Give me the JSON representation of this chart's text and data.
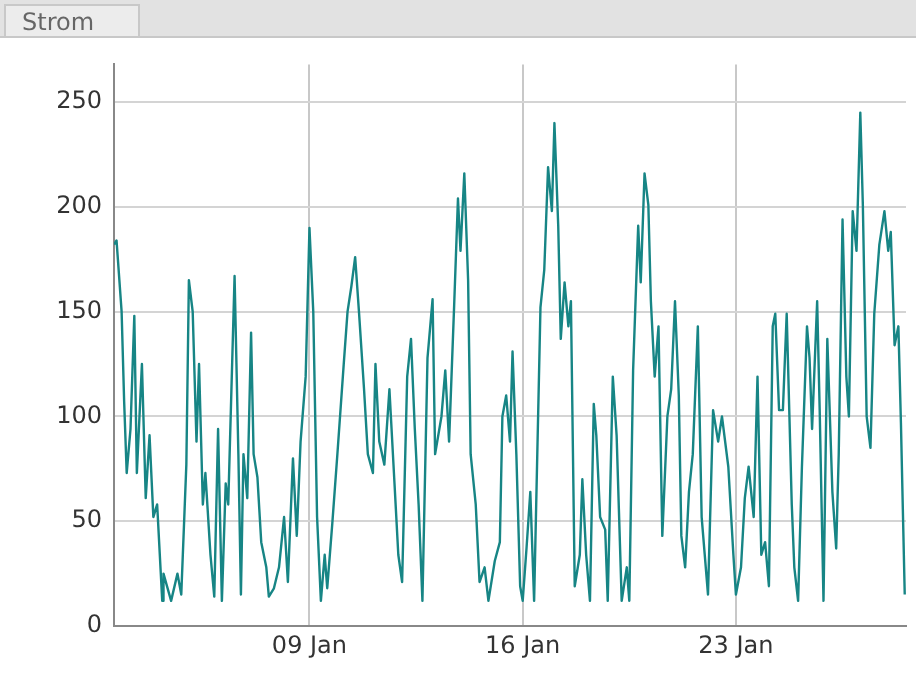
{
  "chart_data": {
    "type": "line",
    "title": "Strom",
    "x": [
      "--01-02T14:00",
      "--01-02T16:00",
      "--01-02T20:00",
      "--01-02T22:00",
      "--01-03T00:00",
      "--01-03T03:00",
      "--01-03T06:00",
      "--01-03T08:00",
      "--01-03T12:00",
      "--01-03T15:00",
      "--01-03T18:00",
      "--01-03T21:00",
      "--01-04T00:00",
      "--01-04T04:00",
      "--01-04T05:00",
      "--01-04T11:00",
      "--01-04T16:00",
      "--01-04T19:00",
      "--01-04T23:00",
      "--01-05T01:00",
      "--01-05T04:00",
      "--01-05T07:00",
      "--01-05T09:00",
      "--01-05T12:00",
      "--01-05T14:00",
      "--01-05T18:00",
      "--01-05T21:00",
      "--01-06T00:00",
      "--01-06T03:00",
      "--01-06T06:00",
      "--01-06T08:00",
      "--01-06T13:00",
      "--01-06T16:00",
      "--01-06T18:00",
      "--01-06T20:00",
      "--01-06T23:00",
      "--01-07T02:00",
      "--01-07T04:00",
      "--01-07T07:00",
      "--01-07T10:00",
      "--01-07T14:00",
      "--01-07T16:00",
      "--01-07T20:00",
      "--01-08T00:00",
      "--01-08T04:00",
      "--01-08T07:00",
      "--01-08T11:00",
      "--01-08T14:00",
      "--01-08T17:00",
      "--01-08T21:00",
      "--01-09T00:00",
      "--01-09T03:00",
      "--01-09T06:00",
      "--01-09T09:00",
      "--01-09T12:00",
      "--01-09T14:00",
      "--01-09T18:00",
      "--01-09T22:00",
      "--01-10T03:00",
      "--01-10T06:00",
      "--01-10T09:00",
      "--01-10T12:00",
      "--01-10T15:00",
      "--01-10T19:00",
      "--01-10T22:00",
      "--01-11T02:00",
      "--01-11T04:00",
      "--01-11T07:00",
      "--01-11T11:00",
      "--01-11T15:00",
      "--01-11T19:00",
      "--01-11T22:00",
      "--01-12T01:00",
      "--01-12T05:00",
      "--01-12T08:00",
      "--01-12T11:00",
      "--01-12T14:00",
      "--01-12T17:00",
      "--01-12T21:00",
      "--01-13T01:00",
      "--01-13T03:00",
      "--01-13T08:00",
      "--01-13T11:00",
      "--01-13T14:00",
      "--01-13T18:00",
      "--01-13T21:00",
      "--01-13T23:00",
      "--01-14T02:00",
      "--01-14T05:00",
      "--01-14T07:00",
      "--01-14T11:00",
      "--01-14T14:00",
      "--01-14T18:00",
      "--01-14T21:00",
      "--01-15T02:00",
      "--01-15T06:00",
      "--01-15T08:00",
      "--01-15T11:00",
      "--01-15T14:00",
      "--01-15T16:00",
      "--01-15T19:00",
      "--01-15T22:00",
      "--01-16T00:00",
      "--01-16T03:00",
      "--01-16T06:00",
      "--01-16T09:00",
      "--01-16T14:00",
      "--01-16T17:00",
      "--01-16T20:00",
      "--01-16T23:00",
      "--01-17T01:00",
      "--01-17T04:00",
      "--01-17T06:00",
      "--01-17T09:00",
      "--01-17T12:00",
      "--01-17T14:00",
      "--01-17T17:00",
      "--01-17T21:00",
      "--01-17T23:00",
      "--01-18T02:00",
      "--01-18T05:00",
      "--01-18T08:00",
      "--01-18T10:00",
      "--01-18T13:00",
      "--01-18T17:00",
      "--01-18T19:00",
      "--01-18T23:00",
      "--01-19T02:00",
      "--01-19T06:00",
      "--01-19T10:00",
      "--01-19T12:00",
      "--01-19T15:00",
      "--01-19T19:00",
      "--01-19T21:00",
      "--01-20T00:00",
      "--01-20T03:00",
      "--01-20T05:00",
      "--01-20T08:00",
      "--01-20T11:00",
      "--01-20T14:00",
      "--01-20T18:00",
      "--01-20T21:00",
      "--01-21T00:00",
      "--01-21T03:00",
      "--01-21T05:00",
      "--01-21T08:00",
      "--01-21T11:00",
      "--01-21T14:00",
      "--01-21T18:00",
      "--01-21T21:00",
      "--01-22T02:00",
      "--01-22T06:00",
      "--01-22T10:00",
      "--01-22T13:00",
      "--01-22T18:00",
      "--01-22T22:00",
      "--01-23T00:00",
      "--01-23T04:00",
      "--01-23T07:00",
      "--01-23T10:00",
      "--01-23T14:00",
      "--01-23T17:00",
      "--01-23T20:00",
      "--01-23T23:00",
      "--01-24T02:00",
      "--01-24T05:00",
      "--01-24T07:00",
      "--01-24T10:00",
      "--01-24T13:00",
      "--01-24T16:00",
      "--01-24T20:00",
      "--01-24T22:00",
      "--01-25T01:00",
      "--01-25T04:00",
      "--01-25T08:00",
      "--01-25T10:00",
      "--01-25T12:00",
      "--01-25T16:00",
      "--01-25T18:00",
      "--01-25T21:00",
      "--01-26T00:00",
      "--01-26T04:00",
      "--01-26T07:00",
      "--01-26T09:00",
      "--01-26T12:00",
      "--01-26T15:00",
      "--01-26T17:00",
      "--01-26T20:00",
      "--01-26T23:00",
      "--01-27T02:00",
      "--01-27T04:00",
      "--01-27T07:00",
      "--01-27T10:00",
      "--01-27T13:00",
      "--01-27T17:00",
      "--01-27T21:00",
      "--01-28T00:00",
      "--01-28T02:00",
      "--01-28T05:00",
      "--01-28T08:00",
      "--01-28T10:00",
      "--01-28T13:00"
    ],
    "series": [
      {
        "color": "#178585",
        "values": [
          182,
          184,
          150,
          107,
          73,
          94,
          148,
          73,
          125,
          61,
          91,
          52,
          58,
          12,
          25,
          12,
          25,
          15,
          77,
          165,
          150,
          88,
          125,
          58,
          73,
          34,
          14,
          94,
          12,
          68,
          58,
          167,
          82,
          15,
          82,
          61,
          140,
          82,
          71,
          40,
          28,
          14,
          18,
          28,
          52,
          21,
          80,
          43,
          88,
          119,
          190,
          150,
          52,
          12,
          34,
          18,
          49,
          82,
          125,
          150,
          162,
          176,
          150,
          113,
          82,
          73,
          125,
          88,
          77,
          113,
          68,
          34,
          21,
          119,
          137,
          94,
          58,
          12,
          128,
          156,
          82,
          100,
          122,
          88,
          153,
          204,
          179,
          216,
          165,
          82,
          58,
          21,
          28,
          12,
          31,
          40,
          100,
          110,
          88,
          131,
          82,
          19,
          12,
          37,
          64,
          12,
          152,
          170,
          219,
          198,
          240,
          191,
          137,
          164,
          143,
          155,
          19,
          34,
          70,
          34,
          12,
          106,
          91,
          52,
          46,
          12,
          119,
          91,
          12,
          28,
          12,
          122,
          191,
          164,
          216,
          201,
          155,
          119,
          143,
          43,
          100,
          113,
          155,
          110,
          43,
          28,
          64,
          82,
          143,
          52,
          15,
          103,
          88,
          100,
          76,
          34,
          15,
          28,
          61,
          76,
          52,
          119,
          34,
          40,
          19,
          143,
          149,
          103,
          103,
          149,
          58,
          28,
          12,
          76,
          143,
          128,
          94,
          155,
          103,
          12,
          137,
          64,
          37,
          82,
          194,
          119,
          100,
          198,
          179,
          245,
          201,
          100,
          85,
          149,
          182,
          198,
          179,
          188,
          134,
          143,
          97,
          15
        ]
      }
    ],
    "xlim": [
      "--01-02T14:00",
      "--01-28T14:00"
    ],
    "xticks": [
      {
        "value": "--01-09",
        "label": "09 Jan"
      },
      {
        "value": "--01-16",
        "label": "16 Jan"
      },
      {
        "value": "--01-23",
        "label": "23 Jan"
      }
    ],
    "ylim": [
      0,
      268
    ],
    "yticks": [
      0,
      50,
      100,
      150,
      200,
      250
    ],
    "grid": true,
    "legend": false,
    "marker": "none",
    "line_style": "solid"
  }
}
